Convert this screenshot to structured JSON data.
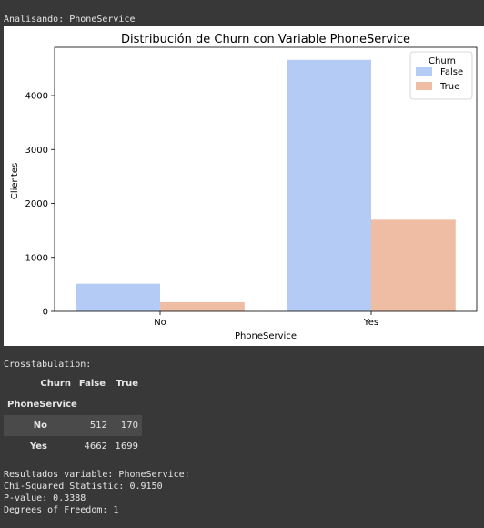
{
  "header": {
    "analyzing": "Analisando: PhoneService"
  },
  "chart_data": {
    "type": "bar",
    "title": "Distribución de Churn con Variable PhoneService",
    "xlabel": "PhoneService",
    "ylabel": "Clientes",
    "categories": [
      "No",
      "Yes"
    ],
    "series": [
      {
        "name": "False",
        "values": [
          512,
          4662
        ]
      },
      {
        "name": "True",
        "values": [
          170,
          1699
        ]
      }
    ],
    "ylim": [
      0,
      4895
    ],
    "yticks": [
      0,
      1000,
      2000,
      3000,
      4000
    ],
    "legend": {
      "title": "Churn",
      "placement": "top-right"
    },
    "colors": {
      "False": "#b4cbf5",
      "True": "#eebda4"
    },
    "grid": false
  },
  "crosstab": {
    "title": "Crosstabulation:",
    "columns_label": "Churn",
    "columns": [
      "False",
      "True"
    ],
    "index_label": "PhoneService",
    "rows": [
      {
        "label": "No",
        "values": [
          "512",
          "170"
        ]
      },
      {
        "label": "Yes",
        "values": [
          "4662",
          "1699"
        ]
      }
    ]
  },
  "results": {
    "line1": "Resultados variable: PhoneService:",
    "line2": "Chi-Squared Statistic: 0.9150",
    "line3": "P-value: 0.3388",
    "line4": "Degrees of Freedom: 1"
  }
}
